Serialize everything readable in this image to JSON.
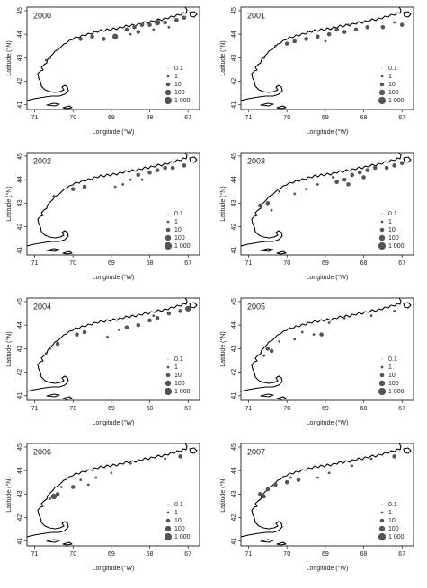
{
  "chart_data": [
    {
      "type": "scatter",
      "title": "2000",
      "x_label": "Longitude (°W)",
      "y_label": "Latitude (°N)",
      "xlim": [
        71.2,
        66.7
      ],
      "ylim": [
        40.8,
        45.15
      ],
      "xticks": [
        71,
        70,
        69,
        68,
        67
      ],
      "yticks": [
        41,
        42,
        43,
        44,
        45
      ],
      "color": "#555555",
      "x": [
        67.1,
        67.3,
        67.6,
        67.8,
        68.0,
        68.2,
        68.4,
        68.6,
        68.3,
        67.9,
        68.9,
        69.2,
        69.5,
        69.8,
        70.6,
        70.7,
        68.5,
        67.5
      ],
      "y": [
        44.7,
        44.6,
        44.5,
        44.5,
        44.4,
        44.4,
        44.3,
        44.2,
        44.1,
        44.2,
        43.9,
        43.8,
        43.9,
        43.8,
        43.0,
        42.9,
        44.0,
        44.3
      ],
      "sizes": [
        10,
        10,
        10,
        100,
        10,
        10,
        10,
        10,
        10,
        1,
        100,
        10,
        10,
        10,
        1,
        1,
        1,
        1
      ],
      "size_legend": [
        0.1,
        1,
        10,
        100,
        {
          "value": 1000,
          "label": "1 000"
        }
      ]
    },
    {
      "type": "scatter",
      "title": "2001",
      "x_label": "Longitude (°W)",
      "y_label": "Latitude (°N)",
      "xlim": [
        71.2,
        66.7
      ],
      "ylim": [
        40.8,
        45.15
      ],
      "xticks": [
        71,
        70,
        69,
        68,
        67
      ],
      "yticks": [
        41,
        42,
        43,
        44,
        45
      ],
      "color": "#555555",
      "x": [
        67.0,
        67.5,
        67.9,
        68.2,
        68.5,
        68.7,
        68.9,
        69.2,
        69.5,
        69.8,
        70.0,
        70.3,
        70.6,
        68.4,
        69.0,
        67.2
      ],
      "y": [
        44.4,
        44.3,
        44.3,
        44.2,
        44.1,
        44.2,
        44.0,
        43.9,
        43.8,
        43.7,
        43.6,
        43.5,
        43.0,
        44.4,
        43.7,
        44.5
      ],
      "sizes": [
        10,
        10,
        10,
        10,
        10,
        10,
        10,
        10,
        10,
        10,
        10,
        1,
        1,
        1,
        1,
        1
      ],
      "size_legend": [
        0.1,
        1,
        10,
        100,
        {
          "value": 1000,
          "label": "1 000"
        }
      ]
    },
    {
      "type": "scatter",
      "title": "2002",
      "x_label": "Longitude (°W)",
      "y_label": "Latitude (°N)",
      "xlim": [
        71.2,
        66.7
      ],
      "ylim": [
        40.8,
        45.15
      ],
      "xticks": [
        71,
        70,
        69,
        68,
        67
      ],
      "yticks": [
        41,
        42,
        43,
        44,
        45
      ],
      "color": "#555555",
      "x": [
        67.1,
        67.4,
        67.6,
        67.8,
        68.0,
        68.3,
        68.5,
        68.7,
        68.9,
        69.7,
        70.0,
        70.5,
        68.2
      ],
      "y": [
        44.6,
        44.5,
        44.5,
        44.4,
        44.3,
        44.2,
        44.0,
        43.8,
        43.7,
        43.7,
        43.6,
        43.3,
        44.0
      ],
      "sizes": [
        10,
        10,
        10,
        10,
        10,
        10,
        1,
        1,
        1,
        10,
        10,
        1,
        1
      ],
      "size_legend": [
        0.1,
        1,
        10,
        100,
        {
          "value": 1000,
          "label": "1 000"
        }
      ]
    },
    {
      "type": "scatter",
      "title": "2003",
      "x_label": "Longitude (°W)",
      "y_label": "Latitude (°N)",
      "xlim": [
        71.2,
        66.7
      ],
      "ylim": [
        40.8,
        45.15
      ],
      "xticks": [
        71,
        70,
        69,
        68,
        67
      ],
      "yticks": [
        41,
        42,
        43,
        44,
        45
      ],
      "color": "#555555",
      "x": [
        67.0,
        67.2,
        67.4,
        67.7,
        67.9,
        68.1,
        68.3,
        68.5,
        68.7,
        68.4,
        68.0,
        68.8,
        69.2,
        69.5,
        69.8,
        70.2,
        70.5,
        70.7,
        70.4
      ],
      "y": [
        44.7,
        44.6,
        44.5,
        44.5,
        44.4,
        44.3,
        44.2,
        44.0,
        43.9,
        43.8,
        44.1,
        44.1,
        43.8,
        43.6,
        43.4,
        43.5,
        43.0,
        42.9,
        42.7
      ],
      "sizes": [
        10,
        10,
        10,
        10,
        10,
        10,
        10,
        10,
        10,
        10,
        10,
        1,
        1,
        1,
        1,
        1,
        10,
        10,
        1
      ],
      "size_legend": [
        0.1,
        1,
        10,
        100,
        {
          "value": 1000,
          "label": "1 000"
        }
      ]
    },
    {
      "type": "scatter",
      "title": "2004",
      "x_label": "Longitude (°W)",
      "y_label": "Latitude (°N)",
      "xlim": [
        71.2,
        66.7
      ],
      "ylim": [
        40.8,
        45.15
      ],
      "xticks": [
        71,
        70,
        69,
        68,
        67
      ],
      "yticks": [
        41,
        42,
        43,
        44,
        45
      ],
      "color": "#555555",
      "x": [
        67.0,
        67.2,
        67.5,
        67.8,
        68.0,
        68.3,
        68.6,
        68.8,
        69.1,
        69.7,
        69.9,
        70.4,
        70.6,
        70.7,
        67.9
      ],
      "y": [
        44.7,
        44.6,
        44.5,
        44.3,
        44.2,
        44.0,
        43.9,
        43.8,
        43.5,
        43.7,
        43.6,
        43.2,
        43.0,
        42.8,
        44.4
      ],
      "sizes": [
        100,
        10,
        10,
        10,
        10,
        10,
        10,
        1,
        1,
        10,
        10,
        10,
        1,
        1,
        1
      ],
      "size_legend": [
        0.1,
        1,
        10,
        100,
        {
          "value": 1000,
          "label": "1 000"
        }
      ]
    },
    {
      "type": "scatter",
      "title": "2005",
      "x_label": "Longitude (°W)",
      "y_label": "Latitude (°N)",
      "xlim": [
        71.2,
        66.7
      ],
      "ylim": [
        40.8,
        45.15
      ],
      "xticks": [
        71,
        70,
        69,
        68,
        67
      ],
      "yticks": [
        41,
        42,
        43,
        44,
        45
      ],
      "color": "#555555",
      "x": [
        67.2,
        67.8,
        68.5,
        68.9,
        69.1,
        69.3,
        69.6,
        69.8,
        70.2,
        70.5,
        70.4,
        70.6
      ],
      "y": [
        44.6,
        44.4,
        44.3,
        44.1,
        43.6,
        43.6,
        43.7,
        43.4,
        43.3,
        43.0,
        42.9,
        42.7
      ],
      "sizes": [
        1,
        1,
        1,
        1,
        10,
        1,
        1,
        1,
        1,
        10,
        10,
        1
      ],
      "size_legend": [
        0.1,
        1,
        10,
        100,
        {
          "value": 1000,
          "label": "1 000"
        }
      ]
    },
    {
      "type": "scatter",
      "title": "2006",
      "x_label": "Longitude (°W)",
      "y_label": "Latitude (°N)",
      "xlim": [
        71.2,
        66.7
      ],
      "ylim": [
        40.8,
        45.15
      ],
      "xticks": [
        71,
        70,
        69,
        68,
        67
      ],
      "yticks": [
        41,
        42,
        43,
        44,
        45
      ],
      "color": "#555555",
      "x": [
        67.2,
        67.6,
        68.5,
        69.0,
        69.4,
        69.8,
        70.0,
        70.3,
        70.4,
        70.5,
        70.6,
        69.6
      ],
      "y": [
        44.6,
        44.5,
        44.3,
        43.9,
        43.7,
        43.6,
        43.3,
        43.3,
        43.0,
        42.9,
        42.8,
        43.4
      ],
      "sizes": [
        10,
        1,
        1,
        1,
        1,
        1,
        10,
        1,
        10,
        100,
        1,
        1
      ],
      "size_legend": [
        0.1,
        1,
        10,
        100,
        {
          "value": 1000,
          "label": "1 000"
        }
      ]
    },
    {
      "type": "scatter",
      "title": "2007",
      "x_label": "Longitude (°W)",
      "y_label": "Latitude (°N)",
      "xlim": [
        71.2,
        66.7
      ],
      "ylim": [
        40.8,
        45.15
      ],
      "xticks": [
        71,
        70,
        69,
        68,
        67
      ],
      "yticks": [
        41,
        42,
        43,
        44,
        45
      ],
      "color": "#555555",
      "x": [
        67.2,
        67.8,
        68.3,
        68.9,
        69.2,
        69.7,
        70.0,
        70.3,
        70.5,
        70.7,
        70.6,
        69.9
      ],
      "y": [
        44.6,
        44.5,
        44.2,
        43.9,
        43.7,
        43.6,
        43.5,
        43.4,
        43.2,
        43.0,
        42.9,
        43.7
      ],
      "sizes": [
        10,
        1,
        1,
        1,
        1,
        10,
        10,
        10,
        10,
        10,
        10,
        1
      ],
      "size_legend": [
        0.1,
        1,
        10,
        100,
        {
          "value": 1000,
          "label": "1 000"
        }
      ]
    }
  ]
}
